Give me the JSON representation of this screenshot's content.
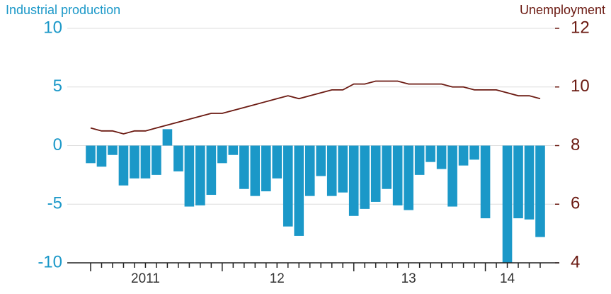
{
  "chart_data": {
    "type": "bar-line",
    "y_title": "Industrial production",
    "y2_title": "Unemployment",
    "categories": [
      null,
      null,
      null,
      null,
      null,
      "2011",
      null,
      null,
      null,
      null,
      null,
      null,
      null,
      null,
      null,
      null,
      null,
      "12",
      null,
      null,
      null,
      null,
      null,
      null,
      null,
      null,
      null,
      null,
      null,
      "13",
      null,
      null,
      null,
      null,
      null,
      null,
      null,
      null,
      "14",
      null,
      null,
      null
    ],
    "series": [
      {
        "name": "Industrial production",
        "type": "bar",
        "color": "#1b98c8",
        "values": [
          -1.5,
          -1.8,
          -0.8,
          -3.4,
          -2.8,
          -2.8,
          -2.5,
          1.4,
          -2.2,
          -5.2,
          -5.1,
          -4.2,
          -1.5,
          -0.8,
          -3.7,
          -4.3,
          -3.9,
          -2.8,
          -6.9,
          -7.7,
          -4.3,
          -2.6,
          -4.3,
          -4.0,
          -6.0,
          -5.4,
          -4.8,
          -3.7,
          -5.1,
          -5.5,
          -2.5,
          -1.4,
          -2.0,
          -5.2,
          -1.7,
          -1.2,
          -6.2,
          null,
          -10,
          -6.2,
          -6.3,
          -7.8
        ]
      },
      {
        "name": "Unemployment",
        "type": "line",
        "axis": "y2",
        "color": "#6b1a12",
        "values": [
          8.6,
          8.5,
          8.5,
          8.4,
          8.5,
          8.5,
          8.6,
          8.7,
          8.8,
          8.9,
          9.0,
          9.1,
          9.1,
          9.2,
          9.3,
          9.4,
          9.5,
          9.6,
          9.7,
          9.6,
          9.7,
          9.8,
          9.9,
          9.9,
          10.1,
          10.1,
          10.2,
          10.2,
          10.2,
          10.1,
          10.1,
          10.1,
          10.1,
          10.0,
          10.0,
          9.9,
          9.9,
          9.9,
          9.8,
          9.7,
          9.7,
          9.6
        ]
      }
    ],
    "ylim": [
      -10,
      10
    ],
    "yticks": [
      -10,
      -5,
      0,
      5,
      10
    ],
    "y2lim": [
      4,
      12
    ],
    "y2ticks": [
      4,
      6,
      8,
      10,
      12
    ],
    "y_color": "#1b98c8",
    "y2_color": "#6b1a12",
    "grid": true
  }
}
